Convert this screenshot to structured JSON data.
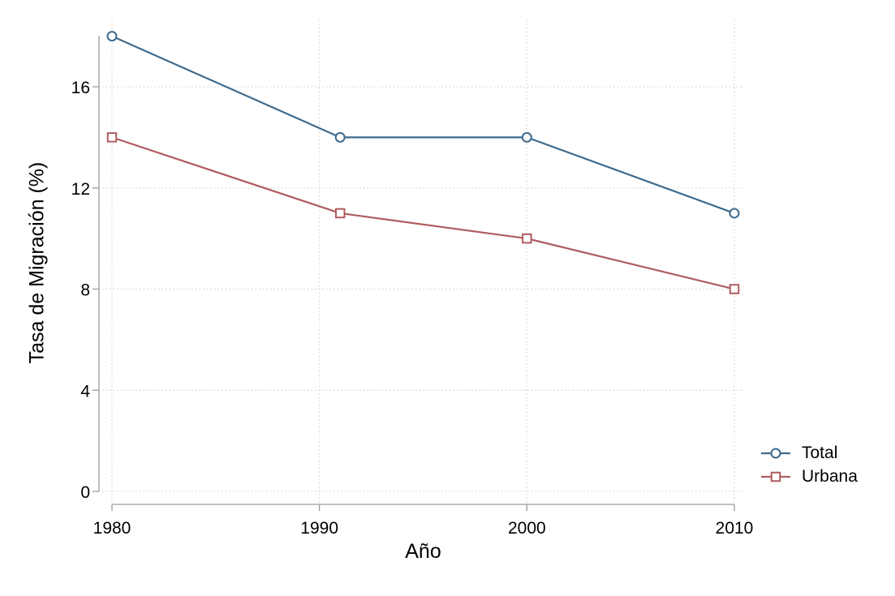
{
  "chart_data": {
    "type": "line",
    "title": "",
    "xlabel": "Año",
    "ylabel": "Tasa de Migración (%)",
    "x": [
      1980,
      1991,
      2000,
      2010
    ],
    "series": [
      {
        "name": "Total",
        "marker": "circle",
        "color": "#3E6B8E",
        "values": [
          18,
          14,
          14,
          11
        ]
      },
      {
        "name": "Urbana",
        "marker": "square",
        "color": "#AF5C60",
        "values": [
          14,
          11,
          10,
          8
        ]
      }
    ],
    "x_ticks": [
      1980,
      1990,
      2000,
      2010
    ],
    "y_ticks": [
      0,
      4,
      8,
      12,
      16
    ],
    "xlim": [
      1980,
      2010
    ],
    "ylim": [
      0,
      18
    ],
    "grid": "dotted",
    "legend_position": "outside-right-bottom",
    "colors": {
      "background": "#ffffff",
      "axis": "#9a9a9a",
      "grid": "#c9c9c9",
      "text": "#000000",
      "marker_fill": "#ffffff"
    }
  }
}
